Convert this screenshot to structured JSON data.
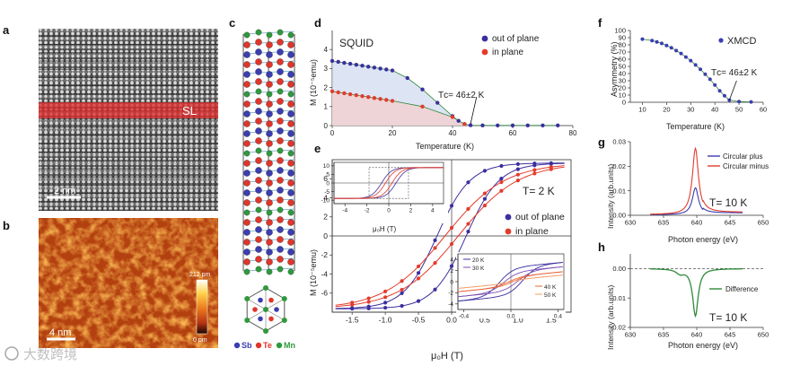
{
  "panel_labels": {
    "a": "a",
    "b": "b",
    "c": "c",
    "d": "d",
    "e": "e",
    "f": "f",
    "g": "g",
    "h": "h"
  },
  "panel_a": {
    "layer_label": "SL",
    "scalebar": "2 nm"
  },
  "panel_b": {
    "scalebar": "4 nm",
    "colorbar_max": "212 pm",
    "colorbar_min": "0 pm"
  },
  "panel_c": {
    "legend": [
      {
        "label": "Sb",
        "color": "#3b3db0"
      },
      {
        "label": "Te",
        "color": "#e0352b"
      },
      {
        "label": "Mn",
        "color": "#2e9a3c"
      }
    ]
  },
  "watermark": "大数跨境",
  "colors": {
    "blue": "#3b2f9e",
    "red": "#e23c2c",
    "green": "#2f8a3a"
  },
  "chart_data": [
    {
      "id": "d",
      "type": "scatter",
      "title": "SQUID",
      "xlabel": "Temperature (K)",
      "ylabel": "M (10⁻⁵emu)",
      "xlim": [
        0,
        80
      ],
      "ylim": [
        0,
        5
      ],
      "xticks": [
        0,
        20,
        40,
        60,
        80
      ],
      "yticks": [
        0,
        1,
        2,
        3,
        4
      ],
      "annotation": "Tᴄ= 46±2 K",
      "series": [
        {
          "name": "out of plane",
          "x": [
            0,
            2,
            4,
            6,
            8,
            10,
            12,
            14,
            16,
            18,
            20,
            25,
            30,
            35,
            40,
            42,
            44,
            46,
            50,
            55,
            60,
            65,
            70,
            75
          ],
          "y": [
            3.4,
            3.35,
            3.3,
            3.25,
            3.2,
            3.15,
            3.1,
            3.05,
            3.0,
            2.95,
            2.9,
            2.5,
            1.9,
            1.2,
            0.5,
            0.25,
            0.08,
            0.02,
            0.01,
            0.01,
            0.01,
            0.01,
            0.01,
            0.01
          ]
        },
        {
          "name": "in plane",
          "x": [
            0,
            2,
            4,
            6,
            8,
            10,
            12,
            14,
            16,
            18,
            20,
            30,
            40,
            44
          ],
          "y": [
            1.8,
            1.75,
            1.7,
            1.65,
            1.6,
            1.55,
            1.5,
            1.45,
            1.4,
            1.35,
            1.3,
            1.0,
            0.45,
            0.08
          ]
        }
      ]
    },
    {
      "id": "e",
      "type": "line",
      "annotation": "T= 2 K",
      "xlabel": "μ₀H (T)",
      "ylabel": "M (10⁻⁵emu)",
      "xlim": [
        -1.8,
        1.8
      ],
      "ylim": [
        -8,
        8
      ],
      "xticks": [
        -1.5,
        -1.0,
        -0.5,
        0.0,
        0.5,
        1.0,
        1.5
      ],
      "yticks": [
        -6,
        -4,
        -2,
        0,
        2,
        4,
        6
      ],
      "series": [
        {
          "name": "out of plane",
          "hc": 0.22,
          "ms": 8.5,
          "width": 0.5
        },
        {
          "name": "in plane",
          "hc": 0.1,
          "ms": 8.5,
          "width": 0.9
        }
      ],
      "inset_left": {
        "label": "2 K",
        "xticks": [
          -4,
          -2,
          0,
          2,
          4
        ],
        "yticks": [
          10,
          5,
          0,
          -5,
          -10
        ],
        "xlabel": "μ₀H (T)",
        "xlim": [
          -5,
          5
        ],
        "ylim": [
          -12,
          12
        ]
      },
      "inset_right": {
        "xticks": [
          -0.4,
          0.0,
          0.4
        ],
        "yticks": [
          4,
          2,
          0,
          -2,
          -4
        ],
        "xlim": [
          -0.45,
          0.45
        ],
        "ylim": [
          -5,
          5
        ],
        "series": [
          {
            "name": "20 K",
            "color": "#3b2f9e",
            "hc": 0.1,
            "ms": 2.6
          },
          {
            "name": "30 K",
            "color": "#7b50b5",
            "hc": 0.06,
            "ms": 1.8
          },
          {
            "name": "40 K",
            "color": "#e6643a",
            "hc": 0.02,
            "ms": 0.9
          },
          {
            "name": "50 K",
            "color": "#f2a06a",
            "hc": 0.0,
            "ms": 0.3
          }
        ]
      }
    },
    {
      "id": "f",
      "type": "scatter",
      "title": "XMCD",
      "xlabel": "Temperature (K)",
      "ylabel": "Asymmetry (%)",
      "xlim": [
        5,
        60
      ],
      "ylim": [
        0,
        100
      ],
      "xticks": [
        10,
        20,
        30,
        40,
        50,
        60
      ],
      "yticks": [
        0,
        10,
        20,
        30,
        40,
        50,
        60,
        70,
        80,
        90,
        100
      ],
      "annotation": "Tᴄ= 46±2 K",
      "series": [
        {
          "name": "XMCD",
          "x": [
            10,
            14,
            16,
            18,
            20,
            22,
            24,
            26,
            28,
            30,
            32,
            34,
            36,
            38,
            40,
            42,
            44,
            46,
            50,
            55
          ],
          "y": [
            88,
            86,
            84,
            82,
            79,
            76,
            72,
            68,
            63,
            58,
            52,
            46,
            39,
            32,
            24,
            16,
            9,
            3,
            1,
            0.5
          ]
        }
      ]
    },
    {
      "id": "g",
      "type": "line",
      "annotation": "T= 10 K",
      "xlabel": "Photon energy (eV)",
      "ylabel": "Intensity (arb.units)",
      "xlim": [
        630,
        650
      ],
      "ylim": [
        0,
        0.03
      ],
      "xticks": [
        630,
        635,
        640,
        645,
        650
      ],
      "yticks": [
        0.0,
        0.01,
        0.02,
        0.03
      ],
      "series": [
        {
          "name": "Circular plus",
          "color": "#3b3db0",
          "peak": 0.011
        },
        {
          "name": "Circular minus",
          "color": "#e23c2c",
          "peak": 0.027
        }
      ]
    },
    {
      "id": "h",
      "type": "line",
      "annotation": "T= 10 K",
      "xlabel": "Photon energy (eV)",
      "ylabel": "Intensity (arb.units)",
      "xlim": [
        630,
        650
      ],
      "ylim": [
        -0.02,
        0.005
      ],
      "xticks": [
        630,
        635,
        640,
        645,
        650
      ],
      "yticks": [
        0.0,
        -0.01,
        -0.02
      ],
      "series": [
        {
          "name": "Difference",
          "color": "#2f8a3a",
          "peak": -0.016
        }
      ]
    }
  ]
}
